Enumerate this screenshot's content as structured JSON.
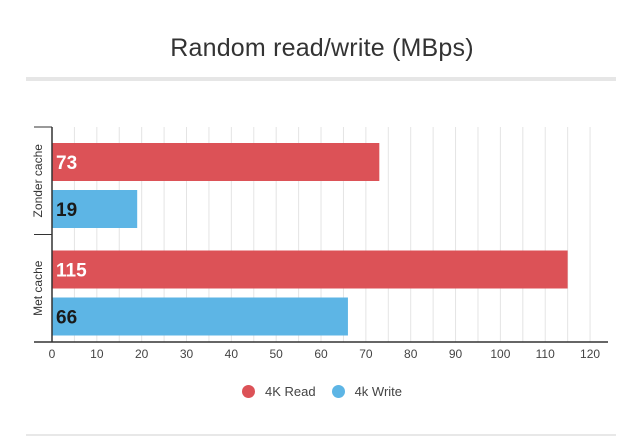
{
  "chart_data": {
    "type": "bar",
    "orientation": "horizontal",
    "title": "Random read/write (MBps)",
    "categories": [
      "Zonder cache",
      "Met cache"
    ],
    "series": [
      {
        "name": "4K Read",
        "color": "#dc5257",
        "label_color": "#ffffff",
        "values": [
          73,
          115
        ]
      },
      {
        "name": "4k Write",
        "color": "#5db5e5",
        "label_color": "#1a1a1a",
        "values": [
          19,
          66
        ]
      }
    ],
    "xlim": [
      0,
      124
    ],
    "x_ticks": [
      0,
      10,
      20,
      30,
      40,
      50,
      60,
      70,
      80,
      90,
      100,
      110,
      120
    ],
    "grid": true,
    "legend_position": "bottom"
  }
}
